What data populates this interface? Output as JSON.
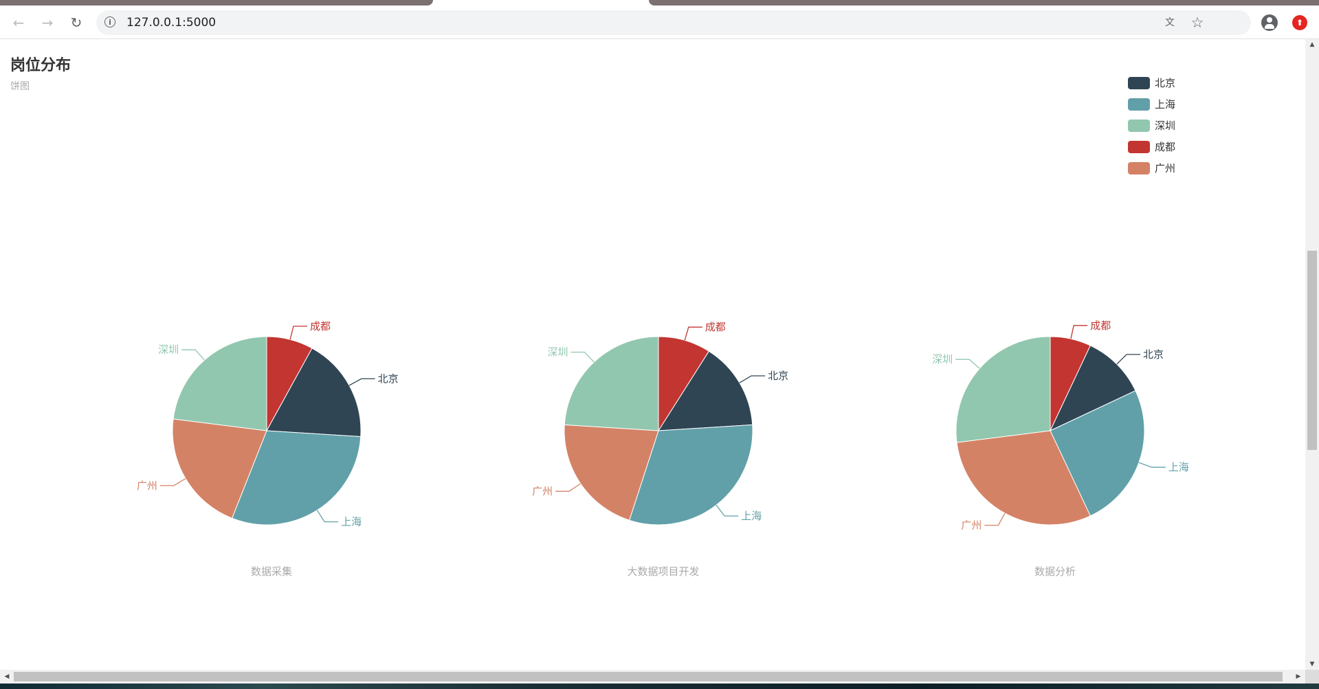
{
  "browser": {
    "url": "127.0.0.1:5000"
  },
  "chart_data": {
    "type": "pie",
    "title": "岗位分布",
    "subtitle": "饼图",
    "legend_position": "top-right",
    "colors": {
      "北京": "#2f4554",
      "上海": "#61a0a8",
      "深圳": "#91c7ae",
      "成都": "#c23531",
      "广州": "#d48265"
    },
    "legend": [
      "北京",
      "上海",
      "深圳",
      "成都",
      "广州"
    ],
    "pies": [
      {
        "name": "数据采集",
        "slices": [
          {
            "name": "成都",
            "value": 8
          },
          {
            "name": "北京",
            "value": 18
          },
          {
            "name": "上海",
            "value": 30
          },
          {
            "name": "广州",
            "value": 21
          },
          {
            "name": "深圳",
            "value": 23
          }
        ]
      },
      {
        "name": "大数据项目开发",
        "slices": [
          {
            "name": "成都",
            "value": 9
          },
          {
            "name": "北京",
            "value": 15
          },
          {
            "name": "上海",
            "value": 31
          },
          {
            "name": "广州",
            "value": 21
          },
          {
            "name": "深圳",
            "value": 24
          }
        ]
      },
      {
        "name": "数据分析",
        "slices": [
          {
            "name": "成都",
            "value": 7
          },
          {
            "name": "北京",
            "value": 11
          },
          {
            "name": "上海",
            "value": 25
          },
          {
            "name": "广州",
            "value": 30
          },
          {
            "name": "深圳",
            "value": 27
          }
        ]
      }
    ]
  }
}
